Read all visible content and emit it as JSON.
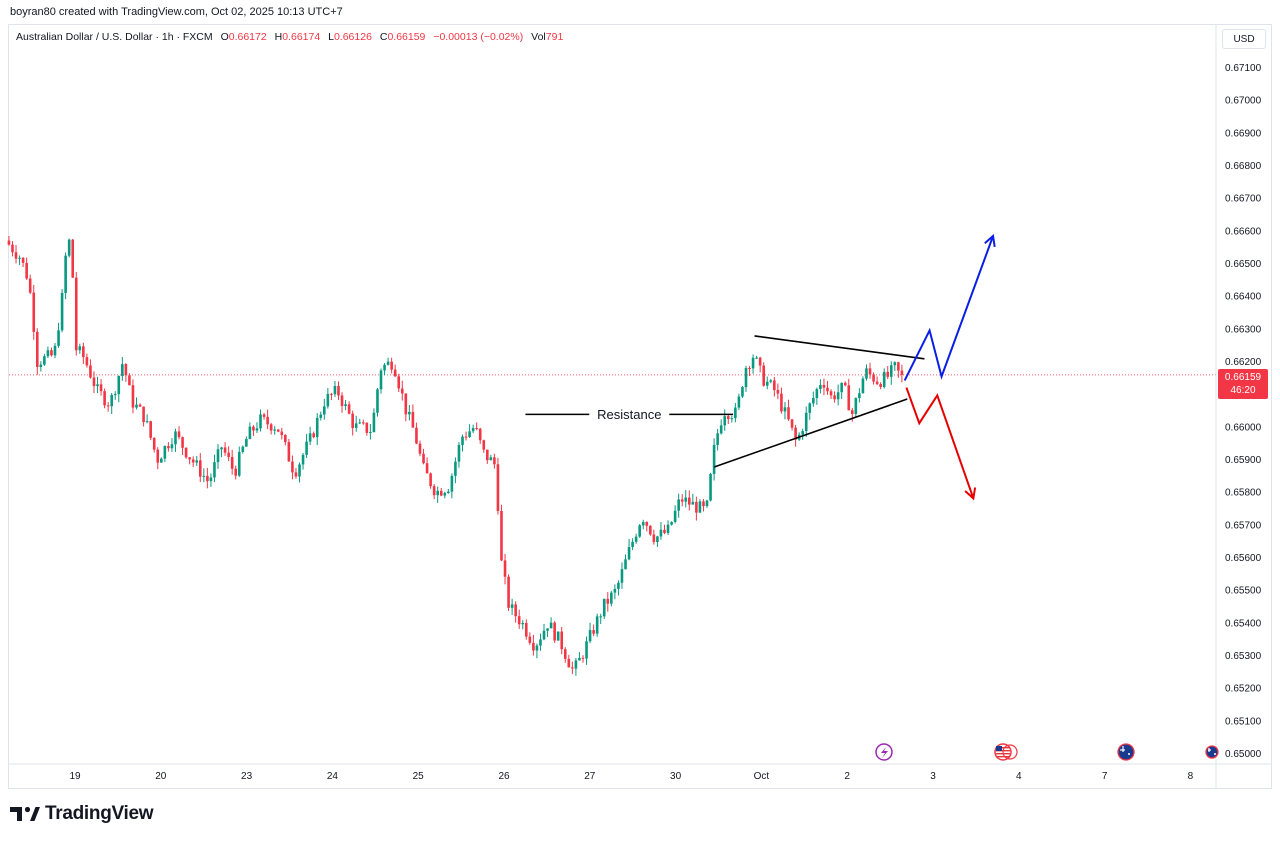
{
  "header": {
    "byline": "boyran80 created with TradingView.com, Oct 02, 2025 10:13 UTC+7"
  },
  "legend": {
    "symbol": "Australian Dollar / U.S. Dollar · 1h · FXCM",
    "o_label": "O",
    "o_value": "0.66172",
    "h_label": "H",
    "h_value": "0.66174",
    "l_label": "L",
    "l_value": "0.66126",
    "c_label": "C",
    "c_value": "0.66159",
    "change": "−0.00013 (−0.02%)",
    "vol_label": "Vol",
    "vol_value": "791"
  },
  "currency": "USD",
  "last_price": {
    "price": "0.66159",
    "countdown": "46:20"
  },
  "brand": {
    "name": "TradingView"
  },
  "colors": {
    "up": "#089981",
    "down": "#f23645",
    "bullish_path": "#0a1ee6",
    "bearish_path": "#e60000",
    "trendline": "#000000"
  },
  "icons": [
    "lightning-event-icon",
    "us-flag-event-icon",
    "au-flag-event-icon",
    "au-flag-event-icon-partial"
  ],
  "chart_data": {
    "type": "candlestick",
    "title": "Australian Dollar / U.S. Dollar · 1h · FXCM",
    "y_ticks": [
      "0.67100",
      "0.67000",
      "0.66900",
      "0.66800",
      "0.66700",
      "0.66600",
      "0.66500",
      "0.66400",
      "0.66300",
      "0.66200",
      "0.66100",
      "0.66000",
      "0.65900",
      "0.65800",
      "0.65700",
      "0.65600",
      "0.65500",
      "0.65400",
      "0.65300",
      "0.65200",
      "0.65100",
      "0.65000"
    ],
    "ylim": [
      0.6497,
      0.6723
    ],
    "x_ticks": [
      {
        "label": "19",
        "day": 0
      },
      {
        "label": "20",
        "day": 1
      },
      {
        "label": "23",
        "day": 2
      },
      {
        "label": "24",
        "day": 3
      },
      {
        "label": "25",
        "day": 4
      },
      {
        "label": "26",
        "day": 5
      },
      {
        "label": "27",
        "day": 6
      },
      {
        "label": "30",
        "day": 7
      },
      {
        "label": "Oct",
        "day": 8
      },
      {
        "label": "2",
        "day": 9
      },
      {
        "label": "3",
        "day": 10
      },
      {
        "label": "4",
        "day": 11
      },
      {
        "label": "7",
        "day": 12
      },
      {
        "label": "8",
        "day": 13
      }
    ],
    "x_range_days": [
      -0.77,
      13.3
    ],
    "price_path": [
      [
        -0.77,
        0.6657
      ],
      [
        -0.6,
        0.6652
      ],
      [
        -0.5,
        0.6645
      ],
      [
        -0.45,
        0.6634
      ],
      [
        -0.4,
        0.662
      ],
      [
        -0.2,
        0.6622
      ],
      [
        -0.1,
        0.6641
      ],
      [
        -0.05,
        0.6658
      ],
      [
        0.0,
        0.6655
      ],
      [
        0.05,
        0.6624
      ],
      [
        0.15,
        0.6621
      ],
      [
        0.3,
        0.6611
      ],
      [
        0.45,
        0.6607
      ],
      [
        0.6,
        0.662
      ],
      [
        0.7,
        0.6608
      ],
      [
        0.85,
        0.6603
      ],
      [
        1.0,
        0.659
      ],
      [
        1.2,
        0.6598
      ],
      [
        1.4,
        0.659
      ],
      [
        1.6,
        0.6583
      ],
      [
        1.75,
        0.6594
      ],
      [
        1.9,
        0.6586
      ],
      [
        2.05,
        0.6597
      ],
      [
        2.2,
        0.6602
      ],
      [
        2.4,
        0.66
      ],
      [
        2.6,
        0.6586
      ],
      [
        2.8,
        0.6597
      ],
      [
        2.95,
        0.6608
      ],
      [
        3.1,
        0.6611
      ],
      [
        3.3,
        0.66
      ],
      [
        3.5,
        0.6599
      ],
      [
        3.6,
        0.6618
      ],
      [
        3.75,
        0.662
      ],
      [
        3.9,
        0.6605
      ],
      [
        4.0,
        0.6598
      ],
      [
        4.1,
        0.6587
      ],
      [
        4.25,
        0.658
      ],
      [
        4.4,
        0.6582
      ],
      [
        4.55,
        0.6597
      ],
      [
        4.7,
        0.66
      ],
      [
        4.8,
        0.6592
      ],
      [
        4.95,
        0.6588
      ],
      [
        5.0,
        0.656
      ],
      [
        5.1,
        0.6545
      ],
      [
        5.25,
        0.654
      ],
      [
        5.4,
        0.6533
      ],
      [
        5.55,
        0.654
      ],
      [
        5.7,
        0.6534
      ],
      [
        5.85,
        0.6525
      ],
      [
        5.95,
        0.653
      ],
      [
        6.05,
        0.6536
      ],
      [
        6.2,
        0.6545
      ],
      [
        6.35,
        0.655
      ],
      [
        6.5,
        0.6562
      ],
      [
        6.65,
        0.6573
      ],
      [
        6.8,
        0.6566
      ],
      [
        6.95,
        0.6568
      ],
      [
        7.1,
        0.6578
      ],
      [
        7.25,
        0.6576
      ],
      [
        7.4,
        0.6574
      ],
      [
        7.5,
        0.6595
      ],
      [
        7.6,
        0.6605
      ],
      [
        7.75,
        0.6604
      ],
      [
        7.85,
        0.6618
      ],
      [
        7.95,
        0.6622
      ],
      [
        8.05,
        0.6615
      ],
      [
        8.2,
        0.6611
      ],
      [
        8.35,
        0.6602
      ],
      [
        8.45,
        0.6595
      ],
      [
        8.6,
        0.6606
      ],
      [
        8.75,
        0.6615
      ],
      [
        8.85,
        0.6609
      ],
      [
        9.0,
        0.6612
      ],
      [
        9.1,
        0.6604
      ],
      [
        9.25,
        0.6617
      ],
      [
        9.4,
        0.6614
      ],
      [
        9.5,
        0.6615
      ],
      [
        9.6,
        0.6618
      ],
      [
        9.65,
        0.66159
      ]
    ],
    "annotations": [
      {
        "type": "horizontal_line",
        "label": "Resistance",
        "price": 0.66038,
        "from_day": 5.25,
        "to_day": 7.67
      },
      {
        "type": "trendline",
        "from": [
          7.92,
          0.66278
        ],
        "to": [
          9.9,
          0.66208
        ]
      },
      {
        "type": "trendline",
        "from": [
          7.45,
          0.65877
        ],
        "to": [
          9.7,
          0.66085
        ]
      },
      {
        "type": "projection",
        "direction": "up",
        "points": [
          [
            9.67,
            0.66142
          ],
          [
            9.96,
            0.66295
          ],
          [
            10.1,
            0.66154
          ],
          [
            10.7,
            0.66584
          ]
        ]
      },
      {
        "type": "projection",
        "direction": "down",
        "points": [
          [
            9.69,
            0.6612
          ],
          [
            9.84,
            0.66011
          ],
          [
            10.05,
            0.66096
          ],
          [
            10.47,
            0.65781
          ]
        ]
      }
    ]
  }
}
